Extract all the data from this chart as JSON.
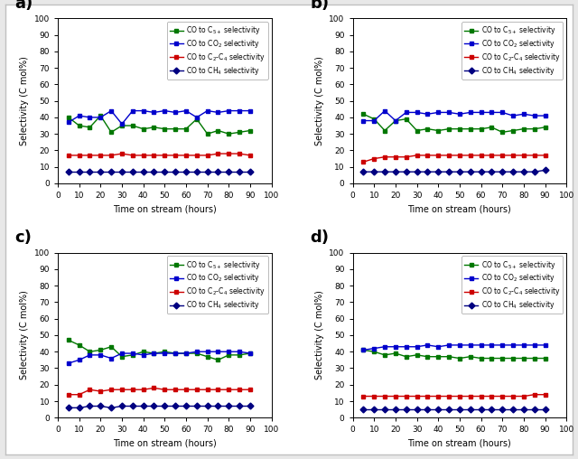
{
  "x": [
    5,
    10,
    15,
    20,
    25,
    30,
    35,
    40,
    45,
    50,
    55,
    60,
    65,
    70,
    75,
    80,
    85,
    90
  ],
  "panels": {
    "a": {
      "label": "a)",
      "C5p": [
        40,
        35,
        34,
        41,
        31,
        35,
        35,
        33,
        34,
        33,
        33,
        33,
        39,
        30,
        32,
        30,
        31,
        32
      ],
      "CO2": [
        37,
        41,
        40,
        40,
        44,
        36,
        44,
        44,
        43,
        44,
        43,
        44,
        40,
        44,
        43,
        44,
        44,
        44
      ],
      "C2C4": [
        17,
        17,
        17,
        17,
        17,
        18,
        17,
        17,
        17,
        17,
        17,
        17,
        17,
        17,
        18,
        18,
        18,
        17
      ],
      "CH4": [
        7,
        7,
        7,
        7,
        7,
        7,
        7,
        7,
        7,
        7,
        7,
        7,
        7,
        7,
        7,
        7,
        7,
        7
      ]
    },
    "b": {
      "label": "b)",
      "C5p": [
        42,
        39,
        32,
        38,
        39,
        32,
        33,
        32,
        33,
        33,
        33,
        33,
        34,
        31,
        32,
        33,
        33,
        34
      ],
      "CO2": [
        38,
        38,
        44,
        38,
        43,
        43,
        42,
        43,
        43,
        42,
        43,
        43,
        43,
        43,
        41,
        42,
        41,
        41
      ],
      "C2C4": [
        13,
        15,
        16,
        16,
        16,
        17,
        17,
        17,
        17,
        17,
        17,
        17,
        17,
        17,
        17,
        17,
        17,
        17
      ],
      "CH4": [
        7,
        7,
        7,
        7,
        7,
        7,
        7,
        7,
        7,
        7,
        7,
        7,
        7,
        7,
        7,
        7,
        7,
        8
      ]
    },
    "c": {
      "label": "c)",
      "C5p": [
        47,
        44,
        40,
        41,
        43,
        37,
        38,
        40,
        39,
        40,
        39,
        39,
        39,
        37,
        35,
        38,
        38,
        39
      ],
      "CO2": [
        33,
        35,
        38,
        38,
        36,
        39,
        39,
        38,
        39,
        39,
        39,
        39,
        40,
        40,
        40,
        40,
        40,
        39
      ],
      "C2C4": [
        14,
        14,
        17,
        16,
        17,
        17,
        17,
        17,
        18,
        17,
        17,
        17,
        17,
        17,
        17,
        17,
        17,
        17
      ],
      "CH4": [
        6,
        6,
        7,
        7,
        6,
        7,
        7,
        7,
        7,
        7,
        7,
        7,
        7,
        7,
        7,
        7,
        7,
        7
      ]
    },
    "d": {
      "label": "d)",
      "C5p": [
        41,
        40,
        38,
        39,
        37,
        38,
        37,
        37,
        37,
        36,
        37,
        36,
        36,
        36,
        36,
        36,
        36,
        36
      ],
      "CO2": [
        41,
        42,
        43,
        43,
        43,
        43,
        44,
        43,
        44,
        44,
        44,
        44,
        44,
        44,
        44,
        44,
        44,
        44
      ],
      "C2C4": [
        13,
        13,
        13,
        13,
        13,
        13,
        13,
        13,
        13,
        13,
        13,
        13,
        13,
        13,
        13,
        13,
        14,
        14
      ],
      "CH4": [
        5,
        5,
        5,
        5,
        5,
        5,
        5,
        5,
        5,
        5,
        5,
        5,
        5,
        5,
        5,
        5,
        5,
        5
      ]
    }
  },
  "colors": {
    "C5p": "#007700",
    "CO2": "#0000CC",
    "C2C4": "#CC0000",
    "CH4": "#000080"
  },
  "legend_labels": {
    "C5p": "CO to C$_{5+}$ selectivity",
    "CO2": "CO to CO$_{2}$ selectivity",
    "C2C4": "CO to C$_{2}$-C$_{4}$ selectivity",
    "CH4": "CO to CH$_{4}$ selectivity"
  },
  "xlabel": "Time on stream (hours)",
  "ylabel": "Selectivity (C mol%)",
  "xlim": [
    0,
    100
  ],
  "ylim": [
    0,
    100
  ],
  "xticks": [
    0,
    10,
    20,
    30,
    40,
    50,
    60,
    70,
    80,
    90,
    100
  ],
  "yticks": [
    0,
    10,
    20,
    30,
    40,
    50,
    60,
    70,
    80,
    90,
    100
  ],
  "outer_border_color": "#C0C0C0",
  "figure_bg": "#E8E8E8"
}
